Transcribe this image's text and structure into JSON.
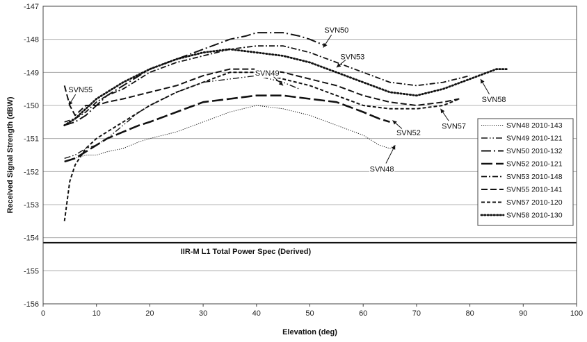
{
  "chart_data": {
    "type": "line",
    "xlabel": "Elevation (deg)",
    "ylabel": "Received Signal Strength (dBW)",
    "xlim": [
      0,
      100
    ],
    "ylim": [
      -156,
      -147
    ],
    "xticks": [
      "0",
      "10",
      "20",
      "30",
      "40",
      "50",
      "60",
      "70",
      "80",
      "90",
      "100"
    ],
    "yticks": [
      "-147",
      "-148",
      "-149",
      "-150",
      "-151",
      "-152",
      "-153",
      "-154",
      "-155",
      "-156"
    ],
    "grid": "horizontal",
    "legend_position": "right",
    "spec_line": {
      "label": "IIR-M L1 Total Power Spec (Derived)",
      "y": -154.15
    },
    "series": [
      {
        "name": "SVN48 2010-143",
        "style": "dotted-fine",
        "x": [
          4,
          6,
          8,
          10,
          12,
          15,
          18,
          20,
          25,
          30,
          35,
          40,
          45,
          50,
          55,
          60,
          63,
          65,
          66
        ],
        "y": [
          -151.7,
          -151.6,
          -151.5,
          -151.5,
          -151.4,
          -151.3,
          -151.1,
          -151.0,
          -150.8,
          -150.5,
          -150.2,
          -150.0,
          -150.1,
          -150.3,
          -150.6,
          -150.9,
          -151.2,
          -151.3,
          -151.2
        ]
      },
      {
        "name": "SVN49 2010-121",
        "style": "dash-dot-dot",
        "x": [
          4,
          6,
          8,
          10,
          12,
          15,
          18,
          20,
          25,
          30,
          35,
          40,
          45,
          48
        ],
        "y": [
          -151.6,
          -151.5,
          -151.3,
          -151.2,
          -151.0,
          -150.6,
          -150.2,
          -150.0,
          -149.6,
          -149.3,
          -149.2,
          -149.1,
          -149.3,
          -149.5
        ]
      },
      {
        "name": "SVN50 2010-132",
        "style": "long-dash-dot",
        "x": [
          4,
          6,
          8,
          10,
          12,
          15,
          18,
          20,
          25,
          30,
          35,
          38,
          40,
          42,
          45,
          48,
          50,
          53
        ],
        "y": [
          -150.6,
          -150.5,
          -150.3,
          -150.0,
          -149.7,
          -149.4,
          -149.1,
          -148.9,
          -148.6,
          -148.3,
          -148.0,
          -147.9,
          -147.8,
          -147.8,
          -147.8,
          -147.9,
          -148.0,
          -148.2
        ]
      },
      {
        "name": "SVN52 2010-121",
        "style": "long-dash",
        "x": [
          4,
          6,
          8,
          10,
          12,
          15,
          18,
          20,
          25,
          30,
          35,
          40,
          45,
          50,
          55,
          60,
          63,
          65
        ],
        "y": [
          -151.7,
          -151.6,
          -151.4,
          -151.2,
          -151.0,
          -150.8,
          -150.6,
          -150.5,
          -150.2,
          -149.9,
          -149.8,
          -149.7,
          -149.7,
          -149.8,
          -149.9,
          -150.2,
          -150.4,
          -150.5
        ]
      },
      {
        "name": "SVN53 2010-148",
        "style": "dash-dot",
        "x": [
          4,
          6,
          8,
          10,
          12,
          15,
          20,
          25,
          30,
          35,
          40,
          45,
          50,
          55,
          60,
          65,
          70,
          75,
          80
        ],
        "y": [
          -150.5,
          -150.4,
          -150.2,
          -149.9,
          -149.7,
          -149.5,
          -149.0,
          -148.7,
          -148.5,
          -148.3,
          -148.2,
          -148.2,
          -148.4,
          -148.7,
          -149.0,
          -149.3,
          -149.4,
          -149.3,
          -149.1
        ]
      },
      {
        "name": "SVN55 2010-141",
        "style": "medium-dash",
        "x": [
          4,
          5,
          6,
          8,
          10,
          12,
          15,
          20,
          25,
          30,
          35,
          40,
          45,
          50,
          55,
          60,
          65,
          70,
          75,
          78
        ],
        "y": [
          -149.4,
          -150.0,
          -150.3,
          -150.0,
          -150.0,
          -149.9,
          -149.8,
          -149.6,
          -149.4,
          -149.1,
          -148.9,
          -148.9,
          -149.0,
          -149.2,
          -149.4,
          -149.7,
          -149.9,
          -150.0,
          -149.9,
          -149.8
        ]
      },
      {
        "name": "SVN57 2010-120",
        "style": "short-dash",
        "x": [
          4,
          5,
          6,
          8,
          10,
          12,
          15,
          18,
          20,
          25,
          30,
          35,
          40,
          45,
          50,
          55,
          60,
          65,
          70,
          75,
          78
        ],
        "y": [
          -153.5,
          -152.3,
          -151.8,
          -151.3,
          -151.0,
          -150.8,
          -150.5,
          -150.2,
          -150.0,
          -149.6,
          -149.3,
          -149.0,
          -149.0,
          -149.2,
          -149.4,
          -149.7,
          -150.0,
          -150.1,
          -150.1,
          -150.0,
          -149.8
        ]
      },
      {
        "name": "SVN58 2010-130",
        "style": "heavy-dotted",
        "x": [
          4,
          6,
          8,
          10,
          12,
          15,
          20,
          25,
          30,
          35,
          40,
          45,
          50,
          55,
          60,
          65,
          70,
          75,
          80,
          85,
          87
        ],
        "y": [
          -150.6,
          -150.4,
          -150.1,
          -149.8,
          -149.6,
          -149.3,
          -148.9,
          -148.6,
          -148.4,
          -148.3,
          -148.4,
          -148.5,
          -148.7,
          -149.0,
          -149.3,
          -149.6,
          -149.7,
          -149.5,
          -149.2,
          -148.9,
          -148.9
        ]
      }
    ],
    "annotations": [
      {
        "text": "SVN50",
        "tx": 55,
        "ty": -147.8,
        "ax": 52.5,
        "ay": -148.25
      },
      {
        "text": "SVN53",
        "tx": 58,
        "ty": -148.6,
        "ax": 55,
        "ay": -148.85
      },
      {
        "text": "SVN49",
        "tx": 42,
        "ty": -149.1,
        "ax": 45,
        "ay": -149.4
      },
      {
        "text": "SVN55",
        "tx": 7,
        "ty": -149.6,
        "ax": 4.8,
        "ay": -150.0
      },
      {
        "text": "SVN58",
        "tx": 84.5,
        "ty": -149.9,
        "ax": 82,
        "ay": -149.2
      },
      {
        "text": "SVN52",
        "tx": 68.5,
        "ty": -150.9,
        "ax": 65.5,
        "ay": -150.45
      },
      {
        "text": "SVN57",
        "tx": 77,
        "ty": -150.7,
        "ax": 74.5,
        "ay": -150.1
      },
      {
        "text": "SVN48",
        "tx": 63.5,
        "ty": -152.0,
        "ax": 66,
        "ay": -151.2
      }
    ]
  }
}
